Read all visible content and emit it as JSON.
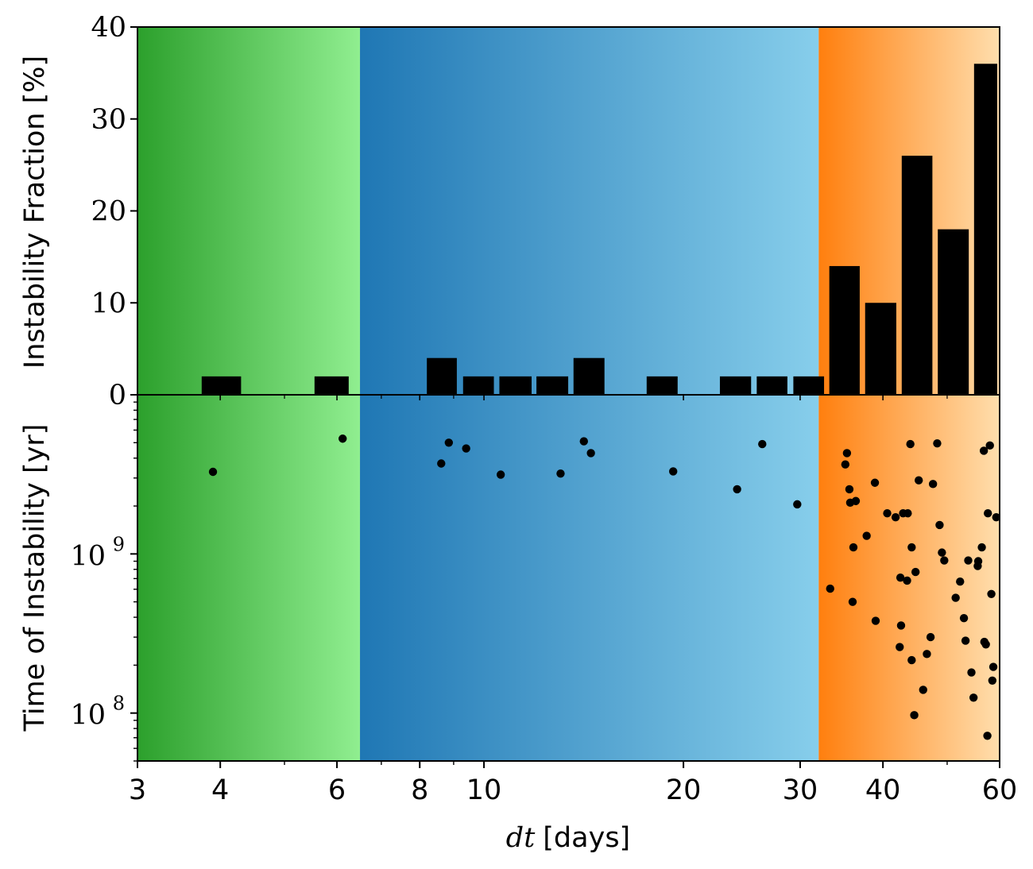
{
  "colors": {
    "green_start": "#2ca02c",
    "green_end": "#90ee90",
    "blue_start": "#1f77b4",
    "blue_end": "#87ceeb",
    "orange_start": "#ff7f0e",
    "orange_end": "#ffdead",
    "marks": "#000000"
  },
  "chart_data": [
    {
      "type": "bar",
      "panel": "top",
      "ylabel": "Instability Fraction [%]",
      "ylim": [
        0,
        40
      ],
      "y_ticks": [
        0,
        10,
        20,
        30,
        40
      ],
      "y_tick_labels": [
        "0",
        "10",
        "20",
        "30",
        "40"
      ],
      "xscale": "log",
      "xlim": [
        3,
        60
      ],
      "bars": [
        {
          "x0": 3.75,
          "x1": 4.3,
          "value": 2
        },
        {
          "x0": 5.55,
          "x1": 6.25,
          "value": 2
        },
        {
          "x0": 8.2,
          "x1": 9.1,
          "value": 4
        },
        {
          "x0": 9.3,
          "x1": 10.35,
          "value": 2
        },
        {
          "x0": 10.55,
          "x1": 11.8,
          "value": 2
        },
        {
          "x0": 12.0,
          "x1": 13.4,
          "value": 2
        },
        {
          "x0": 13.65,
          "x1": 15.2,
          "value": 4
        },
        {
          "x0": 17.6,
          "x1": 19.6,
          "value": 2
        },
        {
          "x0": 22.7,
          "x1": 25.3,
          "value": 2
        },
        {
          "x0": 25.8,
          "x1": 28.7,
          "value": 2
        },
        {
          "x0": 29.3,
          "x1": 32.6,
          "value": 2
        },
        {
          "x0": 33.2,
          "x1": 36.9,
          "value": 14
        },
        {
          "x0": 37.6,
          "x1": 41.9,
          "value": 10
        },
        {
          "x0": 42.7,
          "x1": 47.5,
          "value": 26
        },
        {
          "x0": 48.4,
          "x1": 53.9,
          "value": 18
        },
        {
          "x0": 54.9,
          "x1": 61.0,
          "value": 36
        }
      ],
      "regions": [
        {
          "x0": 3,
          "x1": 6.5,
          "color_start": "#2ca02c",
          "color_end": "#90ee90"
        },
        {
          "x0": 6.5,
          "x1": 32.0,
          "color_start": "#1f77b4",
          "color_end": "#87ceeb"
        },
        {
          "x0": 32.0,
          "x1": 60,
          "color_start": "#ff7f0e",
          "color_end": "#ffdead"
        }
      ]
    },
    {
      "type": "scatter",
      "panel": "bottom",
      "ylabel": "Time of Instability [yr]",
      "yscale": "log",
      "ylim": [
        50000000,
        10000000000
      ],
      "y_major_ticks": [
        {
          "value": 100000000,
          "base": "10",
          "exp": "8"
        },
        {
          "value": 1000000000,
          "base": "10",
          "exp": "9"
        }
      ],
      "xlabel_math": "dt",
      "xlabel_unit": "[days]",
      "xscale": "log",
      "xlim": [
        3,
        60
      ],
      "x_ticks": [
        {
          "value": 3,
          "label": "3"
        },
        {
          "value": 4,
          "label": "4"
        },
        {
          "value": 6,
          "label": "6"
        },
        {
          "value": 8,
          "label": "8"
        },
        {
          "value": 10,
          "label": "10"
        },
        {
          "value": 20,
          "label": "20"
        },
        {
          "value": 30,
          "label": "30"
        },
        {
          "value": 40,
          "label": "40"
        },
        {
          "value": 60,
          "label": "60"
        }
      ],
      "x_minor_ticks": [
        5,
        7,
        9,
        50
      ],
      "points": [
        [
          3.9,
          3280000000.0
        ],
        [
          6.12,
          5300000000.0
        ],
        [
          8.62,
          3700000000.0
        ],
        [
          8.85,
          5000000000.0
        ],
        [
          9.4,
          4600000000.0
        ],
        [
          10.6,
          3150000000.0
        ],
        [
          13.05,
          3200000000.0
        ],
        [
          14.15,
          5100000000.0
        ],
        [
          14.5,
          4300000000.0
        ],
        [
          19.3,
          3300000000.0
        ],
        [
          24.1,
          2550000000.0
        ],
        [
          26.3,
          4900000000.0
        ],
        [
          29.7,
          2050000000.0
        ],
        [
          33.3,
          605000000.0
        ],
        [
          35.1,
          3650000000.0
        ],
        [
          35.3,
          4300000000.0
        ],
        [
          35.6,
          2550000000.0
        ],
        [
          35.7,
          2100000000.0
        ],
        [
          36.1,
          1100000000.0
        ],
        [
          36.0,
          500000000.0
        ],
        [
          36.4,
          2150000000.0
        ],
        [
          37.8,
          1300000000.0
        ],
        [
          38.9,
          2800000000.0
        ],
        [
          39.0,
          380000000.0
        ],
        [
          40.6,
          1800000000.0
        ],
        [
          41.8,
          1700000000.0
        ],
        [
          42.5,
          710000000.0
        ],
        [
          42.6,
          355000000.0
        ],
        [
          42.4,
          260000000.0
        ],
        [
          42.9,
          1800000000.0
        ],
        [
          43.5,
          680000000.0
        ],
        [
          43.6,
          1800000000.0
        ],
        [
          44.0,
          4900000000.0
        ],
        [
          44.2,
          1100000000.0
        ],
        [
          44.2,
          215000000.0
        ],
        [
          44.6,
          97000000.0
        ],
        [
          44.8,
          770000000.0
        ],
        [
          45.3,
          2900000000.0
        ],
        [
          46.0,
          140000000.0
        ],
        [
          46.6,
          235000000.0
        ],
        [
          47.2,
          300000000.0
        ],
        [
          47.6,
          2750000000.0
        ],
        [
          48.3,
          4950000000.0
        ],
        [
          48.7,
          1520000000.0
        ],
        [
          49.1,
          1020000000.0
        ],
        [
          49.5,
          910000000.0
        ],
        [
          51.5,
          530000000.0
        ],
        [
          52.3,
          670000000.0
        ],
        [
          53.0,
          395000000.0
        ],
        [
          53.3,
          285000000.0
        ],
        [
          53.8,
          910000000.0
        ],
        [
          54.4,
          180000000.0
        ],
        [
          54.8,
          125000000.0
        ],
        [
          55.6,
          840000000.0
        ],
        [
          55.7,
          900000000.0
        ],
        [
          56.4,
          1100000000.0
        ],
        [
          56.8,
          4450000000.0
        ],
        [
          56.9,
          280000000.0
        ],
        [
          57.2,
          270000000.0
        ],
        [
          57.5,
          72000000.0
        ],
        [
          57.6,
          1800000000.0
        ],
        [
          58.0,
          4800000000.0
        ],
        [
          58.3,
          560000000.0
        ],
        [
          58.5,
          160000000.0
        ],
        [
          58.7,
          195000000.0
        ],
        [
          59.3,
          1700000000.0
        ]
      ]
    }
  ]
}
